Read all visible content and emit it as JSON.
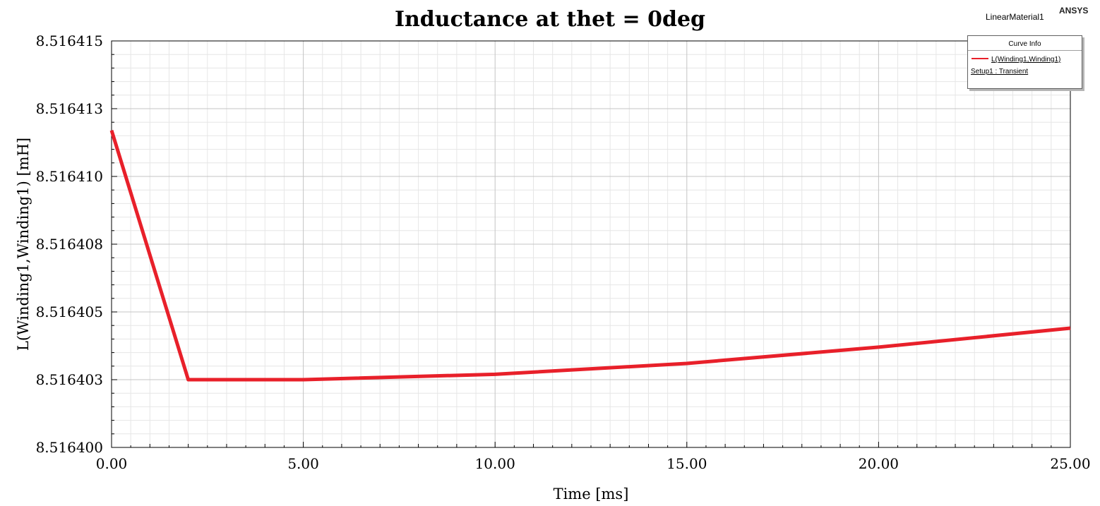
{
  "header": {
    "design_name": "LinearMaterial1",
    "vendor": "ANSYS"
  },
  "legend": {
    "header": "Curve Info",
    "series_label": "L(Winding1,Winding1)",
    "setup_label": "Setup1 : Transient"
  },
  "colors": {
    "series": "#e8202a",
    "major_grid": "#c4c4c4",
    "minor_grid": "#e6e6e6",
    "axis": "#000000"
  },
  "chart_data": {
    "type": "line",
    "title": "Inductance at thet = 0deg",
    "xlabel": "Time [ms]",
    "ylabel": "L(Winding1,Winding1) [mH]",
    "xlim": [
      0,
      25
    ],
    "ylim": [
      8.5164,
      8.516415
    ],
    "x_ticks": [
      0,
      5,
      10,
      15,
      20,
      25
    ],
    "x_tick_labels": [
      "0.00",
      "5.00",
      "10.00",
      "15.00",
      "20.00",
      "25.00"
    ],
    "y_ticks": [
      8.5164,
      8.5164025,
      8.516405,
      8.5164075,
      8.51641,
      8.5164125,
      8.516415
    ],
    "y_tick_labels": [
      "8.516400",
      "8.516403",
      "8.516405",
      "8.516408",
      "8.516410",
      "8.516413",
      "8.516415"
    ],
    "grid": true,
    "legend_position": "top-right",
    "series": [
      {
        "name": "L(Winding1,Winding1)",
        "x": [
          0,
          2,
          5,
          10,
          15,
          20,
          25
        ],
        "y": [
          8.5164117,
          8.5164025,
          8.5164025,
          8.5164027,
          8.5164031,
          8.5164037,
          8.5164044
        ]
      }
    ]
  }
}
